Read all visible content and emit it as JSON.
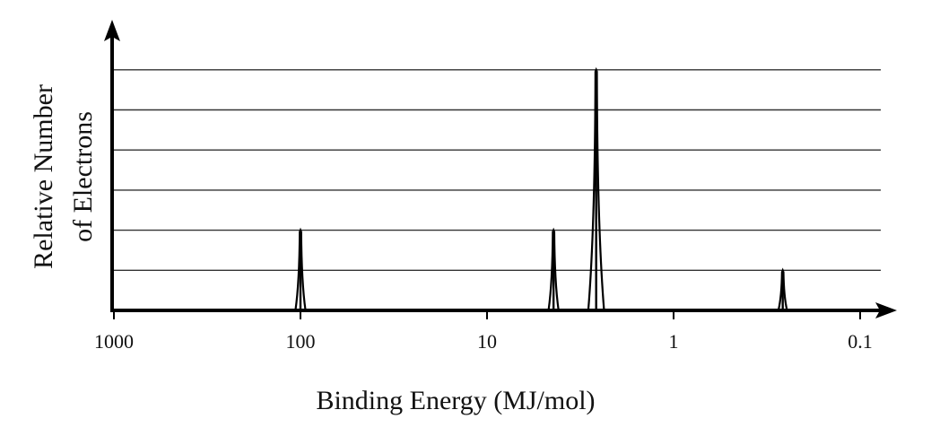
{
  "chart_data": {
    "type": "line",
    "title": "",
    "xlabel": "Binding Energy (MJ/mol)",
    "ylabel_lines": [
      "Relative Number",
      "of Electrons"
    ],
    "x_scale": "log",
    "x_reversed": true,
    "xlim": [
      1000,
      0.1
    ],
    "x_ticks": [
      1000,
      100,
      10,
      1,
      0.1
    ],
    "x_tick_labels": [
      "1000",
      "100",
      "10",
      "1",
      "0.1"
    ],
    "ylim": [
      0,
      6
    ],
    "grid": true,
    "gridlines_y": [
      1,
      2,
      3,
      4,
      5,
      6
    ],
    "series": [
      {
        "peaks": [
          {
            "x": 100,
            "y": 2
          },
          {
            "x": 4.4,
            "y": 2
          },
          {
            "x": 2.6,
            "y": 6
          },
          {
            "x": 0.26,
            "y": 1
          }
        ]
      }
    ],
    "colors": {
      "axis": "#000000",
      "grid": "#333333",
      "peak": "#000000"
    }
  }
}
